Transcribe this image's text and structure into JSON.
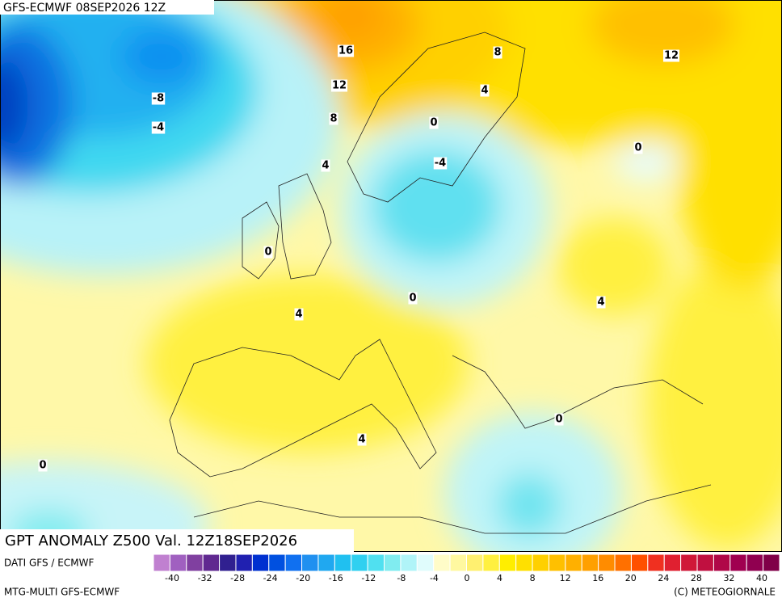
{
  "header": {
    "title": "GFS-ECMWF 08SEP2026 12Z"
  },
  "map": {
    "title": "GPT ANOMALY Z500 Val. 12Z18SEP2026",
    "contour_labels": [
      16,
      12,
      8,
      4,
      -8,
      -4,
      8,
      4,
      12,
      0,
      -4,
      0,
      0,
      0,
      4,
      4,
      0,
      4,
      0
    ]
  },
  "legend": {
    "labels": [
      -40,
      -32,
      -28,
      -24,
      -20,
      -16,
      -12,
      -8,
      -4,
      0,
      4,
      8,
      12,
      16,
      20,
      24,
      28,
      32,
      40
    ],
    "colors": [
      "#c080d0",
      "#a060c0",
      "#8040a0",
      "#602890",
      "#302090",
      "#2020b0",
      "#0030d0",
      "#0050e0",
      "#1070f0",
      "#2090f0",
      "#20a8f0",
      "#20c0f0",
      "#30d0f0",
      "#50e0f0",
      "#80ecf0",
      "#b0f4f8",
      "#e0fcfc",
      "#fffcc8",
      "#fff8a0",
      "#fff070",
      "#fff040",
      "#ffee00",
      "#ffe000",
      "#ffd000",
      "#ffc000",
      "#ffb000",
      "#ffa000",
      "#ff8c00",
      "#ff7000",
      "#ff5000",
      "#f03020",
      "#e02030",
      "#d01838",
      "#c01040",
      "#b00848",
      "#a00050",
      "#900050",
      "#800048"
    ]
  },
  "credits": {
    "source": "DATI GFS / ECMWF",
    "model": "MTG-MULTI GFS-ECMWF",
    "copyright": "(C) METEOGIORNALE"
  }
}
